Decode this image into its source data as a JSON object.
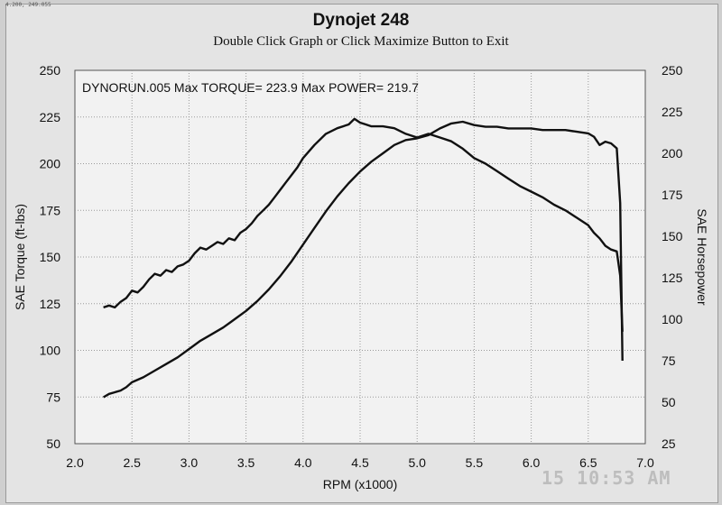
{
  "window": {
    "coordinate_readout": "4.200, 249.055",
    "title": "Dynojet 248",
    "subtitle": "Double Click Graph or Click Maximize Button to Exit",
    "timestamp_stamp": "15  10:53 AM"
  },
  "chart_data": {
    "type": "line",
    "annotation": "DYNORUN.005  Max TORQUE= 223.9   Max POWER= 219.7",
    "xlabel": "RPM (x1000)",
    "ylabel_left": "SAE Torque (ft-lbs)",
    "ylabel_right": "SAE Horsepower",
    "xlim": [
      2.0,
      7.0
    ],
    "ylim_left": [
      50,
      250
    ],
    "ylim_right": [
      25,
      250
    ],
    "x_ticks": [
      "2.0",
      "2.5",
      "3.0",
      "3.5",
      "4.0",
      "4.5",
      "5.0",
      "5.5",
      "6.0",
      "6.5",
      "7.0"
    ],
    "y_ticks_left": [
      "50",
      "75",
      "100",
      "125",
      "150",
      "175",
      "200",
      "225",
      "250"
    ],
    "y_ticks_right": [
      "25",
      "50",
      "75",
      "100",
      "125",
      "150",
      "175",
      "200",
      "225",
      "250"
    ],
    "grid": true,
    "series": [
      {
        "axis": "left",
        "x": [
          2.25,
          2.3,
          2.35,
          2.4,
          2.45,
          2.5,
          2.55,
          2.6,
          2.65,
          2.7,
          2.75,
          2.8,
          2.85,
          2.9,
          2.95,
          3.0,
          3.05,
          3.1,
          3.15,
          3.2,
          3.25,
          3.3,
          3.35,
          3.4,
          3.45,
          3.5,
          3.55,
          3.6,
          3.65,
          3.7,
          3.75,
          3.8,
          3.85,
          3.9,
          3.95,
          4.0,
          4.1,
          4.2,
          4.3,
          4.4,
          4.45,
          4.5,
          4.55,
          4.6,
          4.7,
          4.8,
          4.9,
          5.0,
          5.1,
          5.2,
          5.3,
          5.4,
          5.5,
          5.6,
          5.7,
          5.8,
          5.9,
          6.0,
          6.1,
          6.2,
          6.3,
          6.4,
          6.5,
          6.55,
          6.6,
          6.65,
          6.7,
          6.75,
          6.78,
          6.8
        ],
        "values": [
          123,
          124,
          123,
          126,
          128,
          132,
          131,
          134,
          138,
          141,
          140,
          143,
          142,
          145,
          146,
          148,
          152,
          155,
          154,
          156,
          158,
          157,
          160,
          159,
          163,
          165,
          168,
          172,
          175,
          178,
          182,
          186,
          190,
          194,
          198,
          203,
          210,
          216,
          219,
          221,
          224,
          222,
          221,
          220,
          220,
          219,
          216,
          214,
          216,
          214,
          212,
          208,
          203,
          200,
          196,
          192,
          188,
          185,
          182,
          178,
          175,
          171,
          167,
          163,
          160,
          156,
          154,
          153,
          140,
          110
        ]
      },
      {
        "axis": "right",
        "x": [
          2.25,
          2.3,
          2.35,
          2.4,
          2.45,
          2.5,
          2.6,
          2.7,
          2.8,
          2.9,
          3.0,
          3.1,
          3.2,
          3.3,
          3.4,
          3.5,
          3.6,
          3.7,
          3.8,
          3.9,
          4.0,
          4.1,
          4.2,
          4.3,
          4.4,
          4.5,
          4.6,
          4.7,
          4.8,
          4.9,
          5.0,
          5.1,
          5.2,
          5.3,
          5.4,
          5.5,
          5.6,
          5.7,
          5.8,
          5.9,
          6.0,
          6.1,
          6.2,
          6.3,
          6.4,
          6.5,
          6.55,
          6.6,
          6.65,
          6.7,
          6.75,
          6.78,
          6.8
        ],
        "values": [
          53,
          55,
          56,
          57,
          59,
          62,
          65,
          69,
          73,
          77,
          82,
          87,
          91,
          95,
          100,
          105,
          111,
          118,
          126,
          135,
          145,
          155,
          165,
          174,
          182,
          189,
          195,
          200,
          205,
          208,
          209,
          211,
          215,
          218,
          219,
          217,
          216,
          216,
          215,
          215,
          215,
          214,
          214,
          214,
          213,
          212,
          210,
          205,
          207,
          206,
          203,
          170,
          75
        ]
      }
    ]
  }
}
